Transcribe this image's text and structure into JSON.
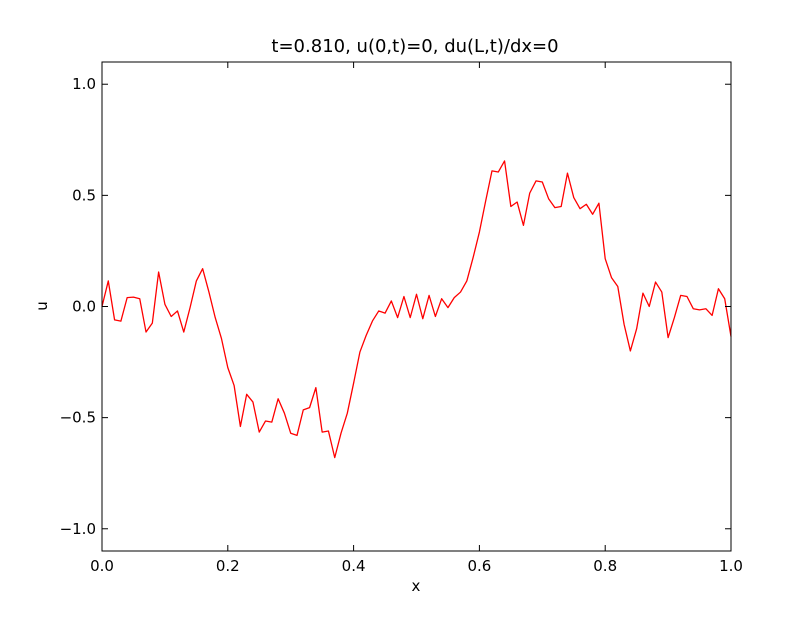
{
  "chart_data": {
    "type": "line",
    "title": "t=0.810, u(0,t)=0, du(L,t)/dx=0",
    "xlabel": "x",
    "ylabel": "u",
    "xlim": [
      0.0,
      1.0
    ],
    "ylim": [
      -1.1,
      1.1
    ],
    "xticks": [
      0.0,
      0.2,
      0.4,
      0.6,
      0.8,
      1.0
    ],
    "xtick_labels": [
      "0.0",
      "0.2",
      "0.4",
      "0.6",
      "0.8",
      "1.0"
    ],
    "yticks": [
      -1.0,
      -0.5,
      0.0,
      0.5,
      1.0
    ],
    "ytick_labels": [
      "−1.0",
      "−0.5",
      "0.0",
      "0.5",
      "1.0"
    ],
    "grid": false,
    "legend": "none",
    "series": [
      {
        "color": "#ff0000",
        "x": [
          0.0,
          0.01,
          0.02,
          0.03,
          0.04,
          0.05,
          0.06,
          0.07,
          0.08,
          0.09,
          0.1,
          0.11,
          0.12,
          0.13,
          0.14,
          0.15,
          0.16,
          0.17,
          0.18,
          0.19,
          0.2,
          0.21,
          0.22,
          0.23,
          0.24,
          0.25,
          0.26,
          0.27,
          0.28,
          0.29,
          0.3,
          0.31,
          0.32,
          0.33,
          0.34,
          0.35,
          0.36,
          0.37,
          0.38,
          0.39,
          0.4,
          0.41,
          0.42,
          0.43,
          0.44,
          0.45,
          0.46,
          0.47,
          0.48,
          0.49,
          0.5,
          0.51,
          0.52,
          0.53,
          0.54,
          0.55,
          0.56,
          0.57,
          0.58,
          0.59,
          0.6,
          0.61,
          0.62,
          0.63,
          0.64,
          0.65,
          0.66,
          0.67,
          0.68,
          0.69,
          0.7,
          0.71,
          0.72,
          0.73,
          0.74,
          0.75,
          0.76,
          0.77,
          0.78,
          0.79,
          0.8,
          0.81,
          0.82,
          0.83,
          0.84,
          0.85,
          0.86,
          0.87,
          0.88,
          0.89,
          0.9,
          0.91,
          0.92,
          0.93,
          0.94,
          0.95,
          0.96,
          0.97,
          0.98,
          0.99,
          1.0
        ],
        "y": [
          0.0,
          0.115,
          -0.06,
          -0.066,
          0.04,
          0.042,
          0.035,
          -0.115,
          -0.075,
          0.155,
          0.01,
          -0.045,
          -0.02,
          -0.115,
          -0.005,
          0.115,
          0.17,
          0.065,
          -0.05,
          -0.145,
          -0.275,
          -0.355,
          -0.54,
          -0.395,
          -0.43,
          -0.565,
          -0.515,
          -0.52,
          -0.415,
          -0.48,
          -0.57,
          -0.58,
          -0.465,
          -0.455,
          -0.365,
          -0.565,
          -0.56,
          -0.68,
          -0.57,
          -0.48,
          -0.345,
          -0.205,
          -0.13,
          -0.065,
          -0.02,
          -0.03,
          0.025,
          -0.05,
          0.045,
          -0.05,
          0.055,
          -0.055,
          0.05,
          -0.045,
          0.035,
          -0.005,
          0.04,
          0.065,
          0.115,
          0.22,
          0.335,
          0.475,
          0.61,
          0.605,
          0.655,
          0.45,
          0.47,
          0.365,
          0.51,
          0.565,
          0.56,
          0.485,
          0.445,
          0.45,
          0.6,
          0.49,
          0.44,
          0.46,
          0.415,
          0.465,
          0.215,
          0.13,
          0.09,
          -0.08,
          -0.2,
          -0.1,
          0.06,
          0.0,
          0.11,
          0.065,
          -0.14,
          -0.05,
          0.05,
          0.045,
          -0.01,
          -0.015,
          -0.01,
          -0.04,
          0.08,
          0.035,
          -0.135
        ]
      }
    ]
  }
}
